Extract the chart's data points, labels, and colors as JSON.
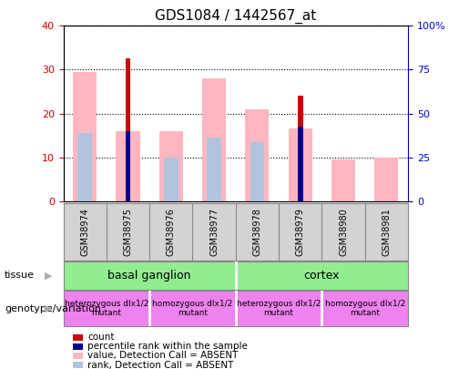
{
  "title": "GDS1084 / 1442567_at",
  "samples": [
    "GSM38974",
    "GSM38975",
    "GSM38976",
    "GSM38977",
    "GSM38978",
    "GSM38979",
    "GSM38980",
    "GSM38981"
  ],
  "count_values": [
    0,
    32.5,
    0,
    0,
    0,
    24,
    0,
    0
  ],
  "percentile_values": [
    0,
    16,
    0,
    0,
    0,
    17,
    0,
    0
  ],
  "absent_value_values": [
    29.5,
    16,
    16,
    28,
    21,
    16.5,
    9.5,
    10
  ],
  "absent_rank_values": [
    15.5,
    0,
    10,
    14.5,
    13.5,
    0,
    0,
    0
  ],
  "ylim_left": [
    0,
    40
  ],
  "ylim_right": [
    0,
    100
  ],
  "yticks_left": [
    0,
    10,
    20,
    30,
    40
  ],
  "yticks_right": [
    0,
    25,
    50,
    75,
    100
  ],
  "ytick_labels_right": [
    "0",
    "25",
    "50",
    "75",
    "100%"
  ],
  "tissue_groups": [
    {
      "label": "basal ganglion",
      "start": 0,
      "end": 4
    },
    {
      "label": "cortex",
      "start": 4,
      "end": 8
    }
  ],
  "genotype_groups": [
    {
      "label": "heterozygous dlx1/2\nmutant",
      "start": 0,
      "end": 2
    },
    {
      "label": "homozygous dlx1/2\nmutant",
      "start": 2,
      "end": 4
    },
    {
      "label": "heterozygous dlx1/2\nmutant",
      "start": 4,
      "end": 6
    },
    {
      "label": "homozygous dlx1/2\nmutant",
      "start": 6,
      "end": 8
    }
  ],
  "count_color": "#cc0000",
  "percentile_color": "#00008b",
  "absent_value_color": "#ffb6c1",
  "absent_rank_color": "#b0c4de",
  "tissue_color": "#90ee90",
  "geno_color": "#ee82ee",
  "left_tick_color": "#cc0000",
  "right_tick_color": "#0000cc",
  "sample_bg_color": "#d3d3d3",
  "legend_items": [
    {
      "color": "#cc0000",
      "label": "count"
    },
    {
      "color": "#00008b",
      "label": "percentile rank within the sample"
    },
    {
      "color": "#ffb6c1",
      "label": "value, Detection Call = ABSENT"
    },
    {
      "color": "#b0c4de",
      "label": "rank, Detection Call = ABSENT"
    }
  ]
}
